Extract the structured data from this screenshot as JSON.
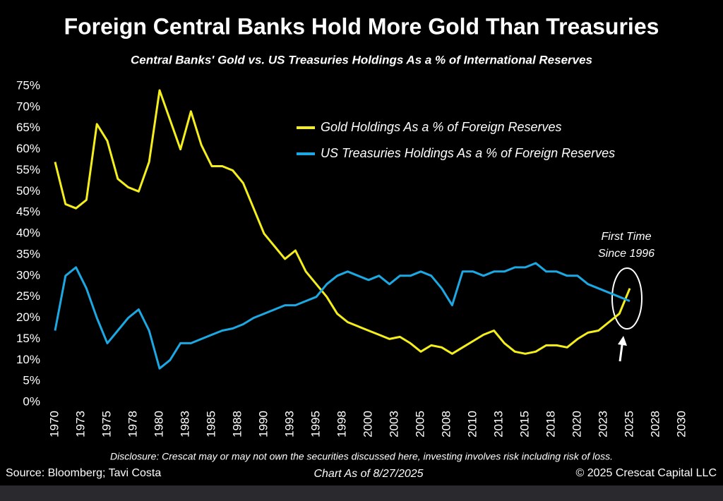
{
  "chart_data": {
    "type": "line",
    "title": "Foreign Central Banks Hold More Gold Than Treasuries",
    "subtitle": "Central Banks' Gold vs. US Treasuries Holdings As a % of International Reserves",
    "x": [
      1970,
      1971,
      1972,
      1973,
      1974,
      1975,
      1976,
      1977,
      1978,
      1979,
      1980,
      1981,
      1982,
      1983,
      1984,
      1985,
      1986,
      1987,
      1988,
      1989,
      1990,
      1991,
      1992,
      1993,
      1994,
      1995,
      1996,
      1997,
      1998,
      1999,
      2000,
      2001,
      2002,
      2003,
      2004,
      2005,
      2006,
      2007,
      2008,
      2009,
      2010,
      2011,
      2012,
      2013,
      2014,
      2015,
      2016,
      2017,
      2018,
      2019,
      2020,
      2021,
      2022,
      2023,
      2024,
      2025
    ],
    "series": [
      {
        "name": "Gold Holdings As a % of Foreign Reserves",
        "color": "#f4ef1c",
        "values": [
          57,
          47,
          46,
          48,
          66,
          62,
          53,
          51,
          50,
          57,
          74,
          67,
          60,
          69,
          61,
          56,
          56,
          55,
          52,
          46,
          40,
          37,
          34,
          36,
          31,
          28,
          25,
          21,
          19,
          18,
          17,
          16,
          15,
          15.5,
          14,
          12,
          13.5,
          13,
          11.5,
          13,
          14.5,
          16,
          17,
          14,
          12,
          11.5,
          12,
          13.5,
          13.5,
          13,
          15,
          16.5,
          17,
          19,
          21,
          27
        ]
      },
      {
        "name": "US Treasuries Holdings As a % of Foreign Reserves",
        "color": "#1ca8e2",
        "values": [
          17,
          30,
          32,
          27,
          20,
          14,
          17,
          20,
          22,
          17,
          8,
          10,
          14,
          14,
          15,
          16,
          17,
          17.5,
          18.5,
          20,
          21,
          22,
          23,
          23,
          24,
          25,
          28,
          30,
          31,
          30,
          29,
          30,
          28,
          30,
          30,
          31,
          30,
          27,
          23,
          31,
          31,
          30,
          31,
          31,
          32,
          32,
          33,
          31,
          31,
          30,
          30,
          28,
          27,
          26,
          25,
          24
        ]
      }
    ],
    "xlim": [
      1970,
      2030
    ],
    "xticks": [
      {
        "value": 1970,
        "label": "1970"
      },
      {
        "value": 1972.5,
        "label": "1973"
      },
      {
        "value": 1975,
        "label": "1975"
      },
      {
        "value": 1977.5,
        "label": "1978"
      },
      {
        "value": 1980,
        "label": "1980"
      },
      {
        "value": 1982.5,
        "label": "1983"
      },
      {
        "value": 1985,
        "label": "1985"
      },
      {
        "value": 1987.5,
        "label": "1988"
      },
      {
        "value": 1990,
        "label": "1990"
      },
      {
        "value": 1992.5,
        "label": "1993"
      },
      {
        "value": 1995,
        "label": "1995"
      },
      {
        "value": 1997.5,
        "label": "1998"
      },
      {
        "value": 2000,
        "label": "2000"
      },
      {
        "value": 2002.5,
        "label": "2003"
      },
      {
        "value": 2005,
        "label": "2005"
      },
      {
        "value": 2007.5,
        "label": "2008"
      },
      {
        "value": 2010,
        "label": "2010"
      },
      {
        "value": 2012.5,
        "label": "2013"
      },
      {
        "value": 2015,
        "label": "2015"
      },
      {
        "value": 2017.5,
        "label": "2018"
      },
      {
        "value": 2020,
        "label": "2020"
      },
      {
        "value": 2022.5,
        "label": "2023"
      },
      {
        "value": 2025,
        "label": "2025"
      },
      {
        "value": 2027.5,
        "label": "2028"
      },
      {
        "value": 2030,
        "label": "2030"
      }
    ],
    "ylim": [
      0,
      75
    ],
    "yticks": [
      {
        "value": 0,
        "label": "0%"
      },
      {
        "value": 5,
        "label": "5%"
      },
      {
        "value": 10,
        "label": "10%"
      },
      {
        "value": 15,
        "label": "15%"
      },
      {
        "value": 20,
        "label": "20%"
      },
      {
        "value": 25,
        "label": "25%"
      },
      {
        "value": 30,
        "label": "30%"
      },
      {
        "value": 35,
        "label": "35%"
      },
      {
        "value": 40,
        "label": "40%"
      },
      {
        "value": 45,
        "label": "45%"
      },
      {
        "value": 50,
        "label": "50%"
      },
      {
        "value": 55,
        "label": "55%"
      },
      {
        "value": 60,
        "label": "60%"
      },
      {
        "value": 65,
        "label": "65%"
      },
      {
        "value": 70,
        "label": "70%"
      },
      {
        "value": 75,
        "label": "75%"
      }
    ],
    "grid": false,
    "annotations": [
      "First Time",
      "Since 1996"
    ],
    "disclosure": "Disclosure: Crescat may or may not own the securities discussed here, investing involves risk including risk of loss.",
    "source": "Source: Bloomberg; Tavi Costa",
    "date_note": "Chart As of 8/27/2025",
    "copyright": "© 2025 Crescat Capital LLC"
  }
}
